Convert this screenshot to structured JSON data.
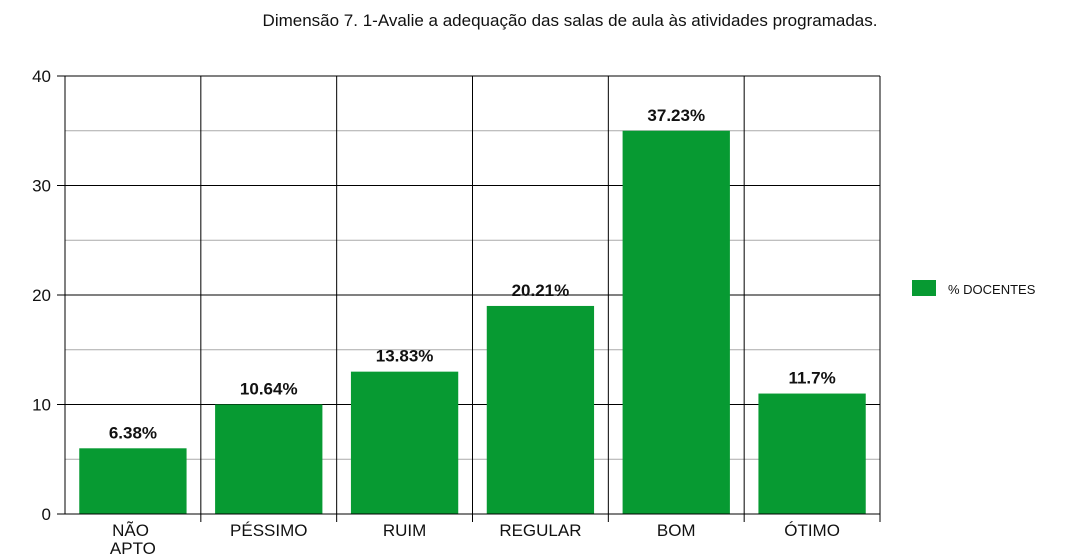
{
  "chart_data": {
    "type": "bar",
    "title": "Dimensão 7. 1-Avalie a adequação das salas de aula às atividades programadas.",
    "categories": [
      "NÃO APTO",
      "PÉSSIMO",
      "RUIM",
      "REGULAR",
      "BOM",
      "ÓTIMO"
    ],
    "series": [
      {
        "name": "% DOCENTES",
        "color": "#079a32",
        "values": [
          6,
          10,
          13,
          19,
          35,
          11
        ]
      }
    ],
    "data_labels": [
      "6.38%",
      "10.64%",
      "13.83%",
      "20.21%",
      "37.23%",
      "11.7%"
    ],
    "ylim": [
      0,
      40
    ],
    "yticks": [
      0,
      10,
      20,
      30,
      40
    ],
    "minor_yticks": [
      5,
      15,
      25,
      35
    ],
    "grid": true,
    "legend": "right"
  }
}
